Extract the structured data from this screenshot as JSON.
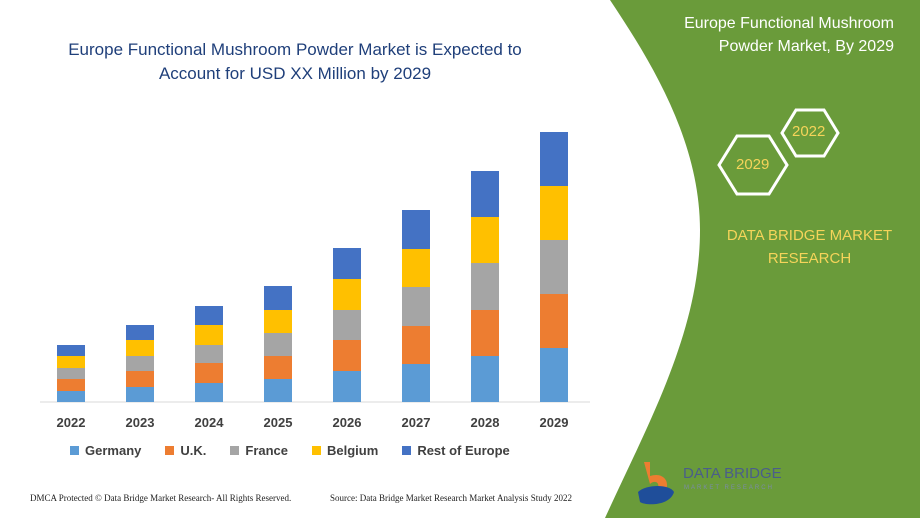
{
  "header": {
    "title_line1": "Europe Functional Mushroom Powder Market is Expected to",
    "title_line2": "Account for USD XX Million by 2029"
  },
  "side_panel": {
    "title_line1": "Europe Functional Mushroom",
    "title_line2": "Powder Market, By 2029",
    "hex_badges": [
      "2022",
      "2029"
    ],
    "brand_line1": "DATA BRIDGE MARKET",
    "brand_line2": "RESEARCH",
    "logo_text": "DATA BRIDGE",
    "logo_subtext": "MARKET RESEARCH",
    "panel_color": "#6a9b3a"
  },
  "footer": {
    "left": "DMCA Protected © Data Bridge Market Research- All Rights Reserved.",
    "right": "Source: Data Bridge Market Research Market Analysis Study 2022"
  },
  "chart_data": {
    "type": "bar",
    "stacked": true,
    "title": "Europe Functional Mushroom Powder Market is Expected to Account for USD XX Million by 2029",
    "categories": [
      "2022",
      "2023",
      "2024",
      "2025",
      "2026",
      "2027",
      "2028",
      "2029"
    ],
    "y_axis_shown": false,
    "grid": false,
    "legend_position": "bottom",
    "series": [
      {
        "name": "Germany",
        "color": "#5b9bd5",
        "values": [
          11,
          15,
          19,
          23,
          31,
          38,
          46,
          54
        ]
      },
      {
        "name": "U.K.",
        "color": "#ed7d31",
        "values": [
          12,
          16,
          20,
          23,
          31,
          38,
          46,
          54
        ]
      },
      {
        "name": "France",
        "color": "#a5a5a5",
        "values": [
          11,
          15,
          18,
          23,
          30,
          39,
          47,
          54
        ]
      },
      {
        "name": "Belgium",
        "color": "#ffc000",
        "values": [
          12,
          16,
          20,
          23,
          31,
          38,
          46,
          54
        ]
      },
      {
        "name": "Rest of Europe",
        "color": "#4472c4",
        "values": [
          11,
          15,
          19,
          24,
          31,
          39,
          46,
          54
        ]
      }
    ]
  }
}
